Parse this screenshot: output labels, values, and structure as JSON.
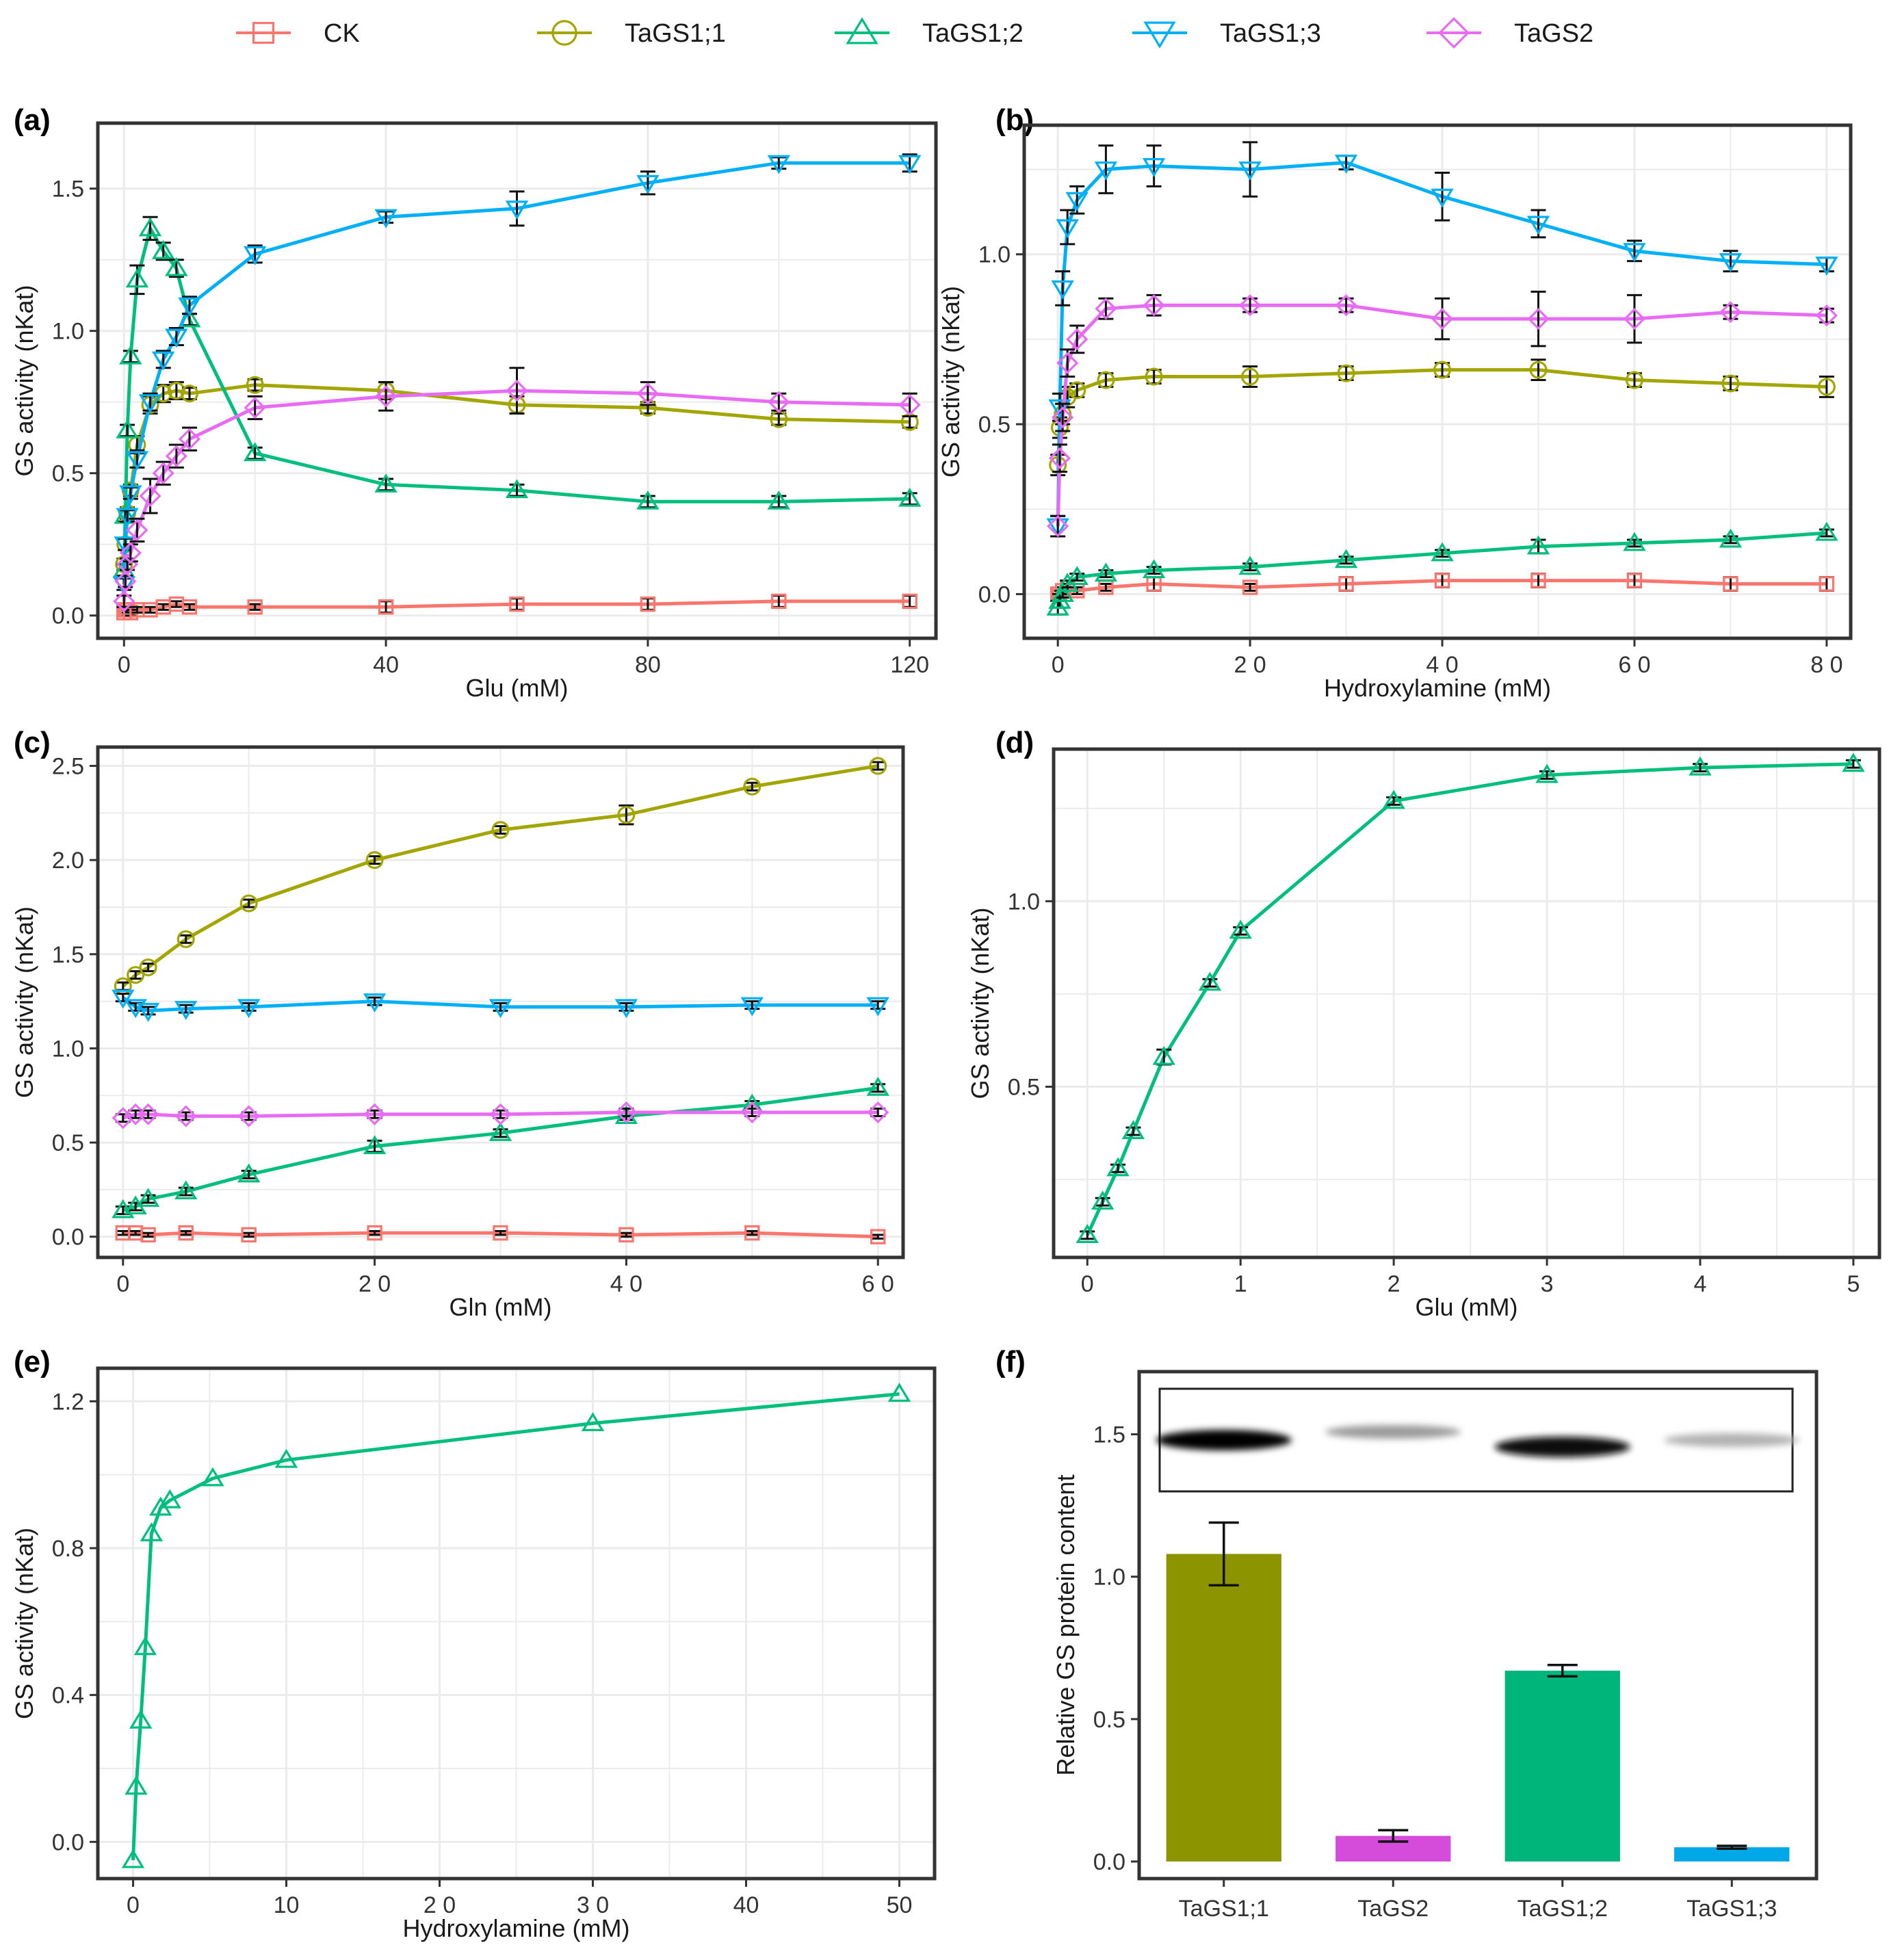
{
  "legend": {
    "items": [
      {
        "label": "CK",
        "color": "#F8766D",
        "marker": "square"
      },
      {
        "label": "TaGS1;1",
        "color": "#A3A500",
        "marker": "circle"
      },
      {
        "label": "TaGS1;2",
        "color": "#00BF7D",
        "marker": "triangle"
      },
      {
        "label": "TaGS1;3",
        "color": "#00B0F6",
        "marker": "triangle-down"
      },
      {
        "label": "TaGS2",
        "color": "#E76BF3",
        "marker": "diamond"
      }
    ]
  },
  "chart_data": [
    {
      "panel": "(a)",
      "type": "line",
      "xlabel": "Glu (mM)",
      "ylabel": "GS activity (nKat)",
      "xlim": [
        -4,
        124
      ],
      "ylim": [
        -0.08,
        1.73
      ],
      "xticks": [
        0,
        40,
        80,
        120
      ],
      "xtick_labels": [
        "0",
        "40",
        "80",
        "120"
      ],
      "yticks": [
        0,
        0.5,
        1,
        1.5
      ],
      "ytick_labels": [
        "0.0",
        "0.5",
        "1.0",
        "1.5"
      ],
      "grid": true,
      "series": [
        {
          "name": "CK",
          "x": [
            0,
            0.2,
            0.5,
            1,
            2,
            4,
            6,
            8,
            10,
            20,
            40,
            60,
            80,
            100,
            120
          ],
          "y": [
            0.01,
            0.02,
            0.02,
            0.01,
            0.02,
            0.02,
            0.03,
            0.04,
            0.03,
            0.03,
            0.03,
            0.04,
            0.04,
            0.05,
            0.05
          ],
          "err": [
            0.01,
            0.01,
            0.01,
            0.01,
            0.01,
            0.01,
            0.01,
            0.01,
            0.01,
            0.01,
            0.02,
            0.02,
            0.02,
            0.02,
            0.02
          ]
        },
        {
          "name": "TaGS1;1",
          "x": [
            0,
            0.2,
            0.5,
            1,
            2,
            4,
            6,
            8,
            10,
            20,
            40,
            60,
            80,
            100,
            120
          ],
          "y": [
            0.18,
            0.25,
            0.36,
            0.44,
            0.6,
            0.74,
            0.78,
            0.79,
            0.78,
            0.81,
            0.79,
            0.74,
            0.73,
            0.69,
            0.68
          ],
          "err": [
            0.02,
            0.02,
            0.02,
            0.02,
            0.03,
            0.03,
            0.03,
            0.03,
            0.02,
            0.02,
            0.03,
            0.03,
            0.02,
            0.02,
            0.02
          ]
        },
        {
          "name": "TaGS1;2",
          "x": [
            0,
            0.2,
            0.5,
            1,
            2,
            4,
            6,
            8,
            10,
            20,
            40,
            60,
            80,
            100,
            120
          ],
          "y": [
            0.16,
            0.35,
            0.65,
            0.91,
            1.18,
            1.36,
            1.28,
            1.22,
            1.04,
            0.57,
            0.46,
            0.44,
            0.4,
            0.4,
            0.41
          ],
          "err": [
            0.02,
            0.02,
            0.02,
            0.02,
            0.05,
            0.04,
            0.03,
            0.03,
            0.02,
            0.02,
            0.02,
            0.02,
            0.02,
            0.02,
            0.02
          ]
        },
        {
          "name": "TaGS1;3",
          "x": [
            0,
            0.2,
            0.5,
            1,
            2,
            4,
            6,
            8,
            10,
            20,
            40,
            60,
            80,
            100,
            120
          ],
          "y": [
            0.11,
            0.25,
            0.35,
            0.43,
            0.55,
            0.75,
            0.9,
            0.98,
            1.09,
            1.27,
            1.4,
            1.43,
            1.52,
            1.59,
            1.59
          ],
          "err": [
            0.02,
            0.02,
            0.02,
            0.02,
            0.03,
            0.03,
            0.03,
            0.03,
            0.03,
            0.03,
            0.02,
            0.06,
            0.04,
            0.02,
            0.03
          ]
        },
        {
          "name": "TaGS2",
          "x": [
            0,
            0.2,
            0.5,
            1,
            2,
            4,
            6,
            8,
            10,
            20,
            40,
            60,
            80,
            100,
            120
          ],
          "y": [
            0.05,
            0.12,
            0.18,
            0.22,
            0.3,
            0.42,
            0.5,
            0.56,
            0.62,
            0.73,
            0.77,
            0.79,
            0.78,
            0.75,
            0.74
          ],
          "err": [
            0.02,
            0.02,
            0.02,
            0.03,
            0.04,
            0.06,
            0.04,
            0.04,
            0.04,
            0.04,
            0.05,
            0.08,
            0.04,
            0.03,
            0.04
          ]
        }
      ]
    },
    {
      "panel": "(b)",
      "type": "line",
      "xlabel": "Hydroxylamine (mM)",
      "ylabel": "GS activity (nKat)",
      "xlim": [
        -3.5,
        82.5
      ],
      "ylim": [
        -0.13,
        1.38
      ],
      "xticks": [
        0,
        20,
        40,
        60,
        80
      ],
      "xtick_labels": [
        "0",
        "2 0",
        "4 0",
        "6 0",
        "8 0"
      ],
      "yticks": [
        0,
        0.5,
        1
      ],
      "ytick_labels": [
        "0.0",
        "0.5",
        "1.0"
      ],
      "grid": true,
      "series": [
        {
          "name": "CK",
          "x": [
            0,
            0.2,
            0.5,
            1,
            2,
            5,
            10,
            20,
            30,
            40,
            50,
            60,
            70,
            80
          ],
          "y": [
            0.0,
            0.0,
            0.01,
            0.02,
            0.01,
            0.02,
            0.03,
            0.02,
            0.03,
            0.04,
            0.04,
            0.04,
            0.03,
            0.03
          ],
          "err": [
            0.01,
            0.01,
            0.01,
            0.01,
            0.01,
            0.01,
            0.02,
            0.01,
            0.02,
            0.02,
            0.02,
            0.02,
            0.02,
            0.02
          ]
        },
        {
          "name": "TaGS1;1",
          "x": [
            0,
            0.2,
            0.5,
            1,
            2,
            5,
            10,
            20,
            30,
            40,
            50,
            60,
            70,
            80
          ],
          "y": [
            0.38,
            0.49,
            0.53,
            0.58,
            0.6,
            0.63,
            0.64,
            0.64,
            0.65,
            0.66,
            0.66,
            0.63,
            0.62,
            0.61
          ],
          "err": [
            0.03,
            0.03,
            0.03,
            0.03,
            0.02,
            0.02,
            0.02,
            0.03,
            0.02,
            0.02,
            0.03,
            0.02,
            0.02,
            0.03
          ]
        },
        {
          "name": "TaGS1;2",
          "x": [
            0,
            0.2,
            0.5,
            1,
            2,
            5,
            10,
            20,
            30,
            40,
            50,
            60,
            70,
            80
          ],
          "y": [
            -0.04,
            -0.02,
            0.0,
            0.03,
            0.05,
            0.06,
            0.07,
            0.08,
            0.1,
            0.12,
            0.14,
            0.15,
            0.16,
            0.18
          ],
          "err": [
            0.02,
            0.02,
            0.01,
            0.01,
            0.01,
            0.01,
            0.01,
            0.01,
            0.01,
            0.01,
            0.02,
            0.01,
            0.01,
            0.01
          ]
        },
        {
          "name": "TaGS1;3",
          "x": [
            0,
            0.2,
            0.5,
            1,
            2,
            5,
            10,
            20,
            30,
            40,
            50,
            60,
            70,
            80
          ],
          "y": [
            0.2,
            0.55,
            0.9,
            1.08,
            1.16,
            1.25,
            1.26,
            1.25,
            1.27,
            1.17,
            1.09,
            1.01,
            0.98,
            0.97
          ],
          "err": [
            0.03,
            0.04,
            0.05,
            0.05,
            0.04,
            0.07,
            0.06,
            0.08,
            0.02,
            0.07,
            0.04,
            0.03,
            0.03,
            0.02
          ]
        },
        {
          "name": "TaGS2",
          "x": [
            0,
            0.2,
            0.5,
            1,
            2,
            5,
            10,
            20,
            30,
            40,
            50,
            60,
            70,
            80
          ],
          "y": [
            0.2,
            0.4,
            0.52,
            0.68,
            0.75,
            0.84,
            0.85,
            0.85,
            0.85,
            0.81,
            0.81,
            0.81,
            0.83,
            0.82
          ],
          "err": [
            0.03,
            0.04,
            0.04,
            0.04,
            0.04,
            0.03,
            0.03,
            0.02,
            0.02,
            0.06,
            0.08,
            0.07,
            0.02,
            0.02
          ]
        }
      ]
    },
    {
      "panel": "(c)",
      "type": "line",
      "xlabel": "Gln (mM)",
      "ylabel": "GS activity (nKat)",
      "xlim": [
        -2,
        62
      ],
      "ylim": [
        -0.11,
        2.6
      ],
      "xticks": [
        0,
        20,
        40,
        60
      ],
      "xtick_labels": [
        "0",
        "2 0",
        "4 0",
        "6 0"
      ],
      "yticks": [
        0,
        0.5,
        1,
        1.5,
        2,
        2.5
      ],
      "ytick_labels": [
        "0.0",
        "0.5",
        "1.0",
        "1.5",
        "2.0",
        "2.5"
      ],
      "grid": true,
      "series": [
        {
          "name": "CK",
          "x": [
            0,
            1,
            2,
            5,
            10,
            20,
            30,
            40,
            50,
            60
          ],
          "y": [
            0.02,
            0.02,
            0.01,
            0.02,
            0.01,
            0.02,
            0.02,
            0.01,
            0.02,
            0.0
          ],
          "err": [
            0.01,
            0.01,
            0.01,
            0.01,
            0.01,
            0.01,
            0.01,
            0.01,
            0.01,
            0.01
          ]
        },
        {
          "name": "TaGS1;1",
          "x": [
            0,
            1,
            2,
            5,
            10,
            20,
            30,
            40,
            50,
            60
          ],
          "y": [
            1.33,
            1.39,
            1.43,
            1.58,
            1.77,
            2.0,
            2.16,
            2.24,
            2.39,
            2.5
          ],
          "err": [
            0.02,
            0.02,
            0.02,
            0.02,
            0.02,
            0.02,
            0.02,
            0.05,
            0.02,
            0.02
          ]
        },
        {
          "name": "TaGS1;2",
          "x": [
            0,
            1,
            2,
            5,
            10,
            20,
            30,
            40,
            50,
            60
          ],
          "y": [
            0.14,
            0.16,
            0.2,
            0.24,
            0.33,
            0.48,
            0.55,
            0.64,
            0.7,
            0.79
          ],
          "err": [
            0.02,
            0.02,
            0.02,
            0.02,
            0.02,
            0.03,
            0.02,
            0.02,
            0.02,
            0.02
          ]
        },
        {
          "name": "TaGS1;3",
          "x": [
            0,
            1,
            2,
            5,
            10,
            20,
            30,
            40,
            50,
            60
          ],
          "y": [
            1.27,
            1.22,
            1.2,
            1.21,
            1.22,
            1.25,
            1.22,
            1.22,
            1.23,
            1.23
          ],
          "err": [
            0.02,
            0.02,
            0.02,
            0.02,
            0.02,
            0.02,
            0.02,
            0.02,
            0.02,
            0.02
          ]
        },
        {
          "name": "TaGS2",
          "x": [
            0,
            1,
            2,
            5,
            10,
            20,
            30,
            40,
            50,
            60
          ],
          "y": [
            0.63,
            0.65,
            0.65,
            0.64,
            0.64,
            0.65,
            0.65,
            0.66,
            0.66,
            0.66
          ],
          "err": [
            0.02,
            0.02,
            0.02,
            0.02,
            0.02,
            0.02,
            0.02,
            0.02,
            0.02,
            0.02
          ]
        }
      ]
    },
    {
      "panel": "(d)",
      "type": "line",
      "xlabel": "Glu (mM)",
      "ylabel": "GS activity (nKat)",
      "xlim": [
        -0.22,
        5.17
      ],
      "ylim": [
        0.04,
        1.41
      ],
      "xticks": [
        0,
        1,
        2,
        3,
        4,
        5
      ],
      "xtick_labels": [
        "0",
        "1",
        "2",
        "3",
        "4",
        "5"
      ],
      "yticks": [
        0.5,
        1
      ],
      "ytick_labels": [
        "0.5",
        "1.0"
      ],
      "grid": true,
      "series": [
        {
          "name": "TaGS1;2",
          "x": [
            0,
            0.1,
            0.2,
            0.3,
            0.5,
            0.8,
            1,
            2,
            3,
            4,
            5
          ],
          "y": [
            0.1,
            0.19,
            0.28,
            0.38,
            0.58,
            0.78,
            0.92,
            1.27,
            1.34,
            1.36,
            1.37
          ],
          "err": [
            0.01,
            0.01,
            0.01,
            0.01,
            0.02,
            0.01,
            0.01,
            0.01,
            0.01,
            0.01,
            0.01
          ]
        }
      ]
    },
    {
      "panel": "(e)",
      "type": "line",
      "xlabel": "Hydroxylamine (mM)",
      "ylabel": "GS activity (nKat)",
      "xlim": [
        -2.3,
        52.3
      ],
      "ylim": [
        -0.1,
        1.29
      ],
      "xticks": [
        0,
        10,
        20,
        30,
        40,
        50
      ],
      "xtick_labels": [
        "0",
        "10",
        "2 0",
        "3 0",
        "40",
        "50"
      ],
      "yticks": [
        0,
        0.4,
        0.8,
        1.2
      ],
      "ytick_labels": [
        "0.0",
        "0.4",
        "0.8",
        "1.2"
      ],
      "grid": true,
      "series": [
        {
          "name": "TaGS1;2",
          "x": [
            0,
            0.2,
            0.5,
            0.8,
            1.2,
            1.8,
            2.4,
            5.2,
            10,
            30,
            50
          ],
          "y": [
            -0.05,
            0.15,
            0.33,
            0.53,
            0.84,
            0.91,
            0.93,
            0.99,
            1.04,
            1.14,
            1.22
          ]
        }
      ]
    },
    {
      "panel": "(f)",
      "type": "bar",
      "ylabel": "Relative GS protein content",
      "categories": [
        "TaGS1;1",
        "TaGS2",
        "TaGS1;2",
        "TaGS1;3"
      ],
      "values": [
        1.08,
        0.09,
        0.67,
        0.05
      ],
      "err": [
        0.11,
        0.02,
        0.02,
        0.005
      ],
      "colors": [
        "#8C9400",
        "#D54CDA",
        "#00B57A",
        "#00A8E8"
      ],
      "ylim": [
        -0.06,
        1.72
      ],
      "yticks": [
        0,
        0.5,
        1,
        1.5
      ],
      "ytick_labels": [
        "0.0",
        "0.5",
        "1.0",
        "1.5"
      ],
      "grid": false,
      "blot_bands": [
        {
          "label": "TaGS1;1",
          "intensity": 1.0
        },
        {
          "label": "TaGS2",
          "intensity": 0.35
        },
        {
          "label": "TaGS1;2",
          "intensity": 0.95
        },
        {
          "label": "TaGS1;3",
          "intensity": 0.25
        }
      ]
    }
  ]
}
